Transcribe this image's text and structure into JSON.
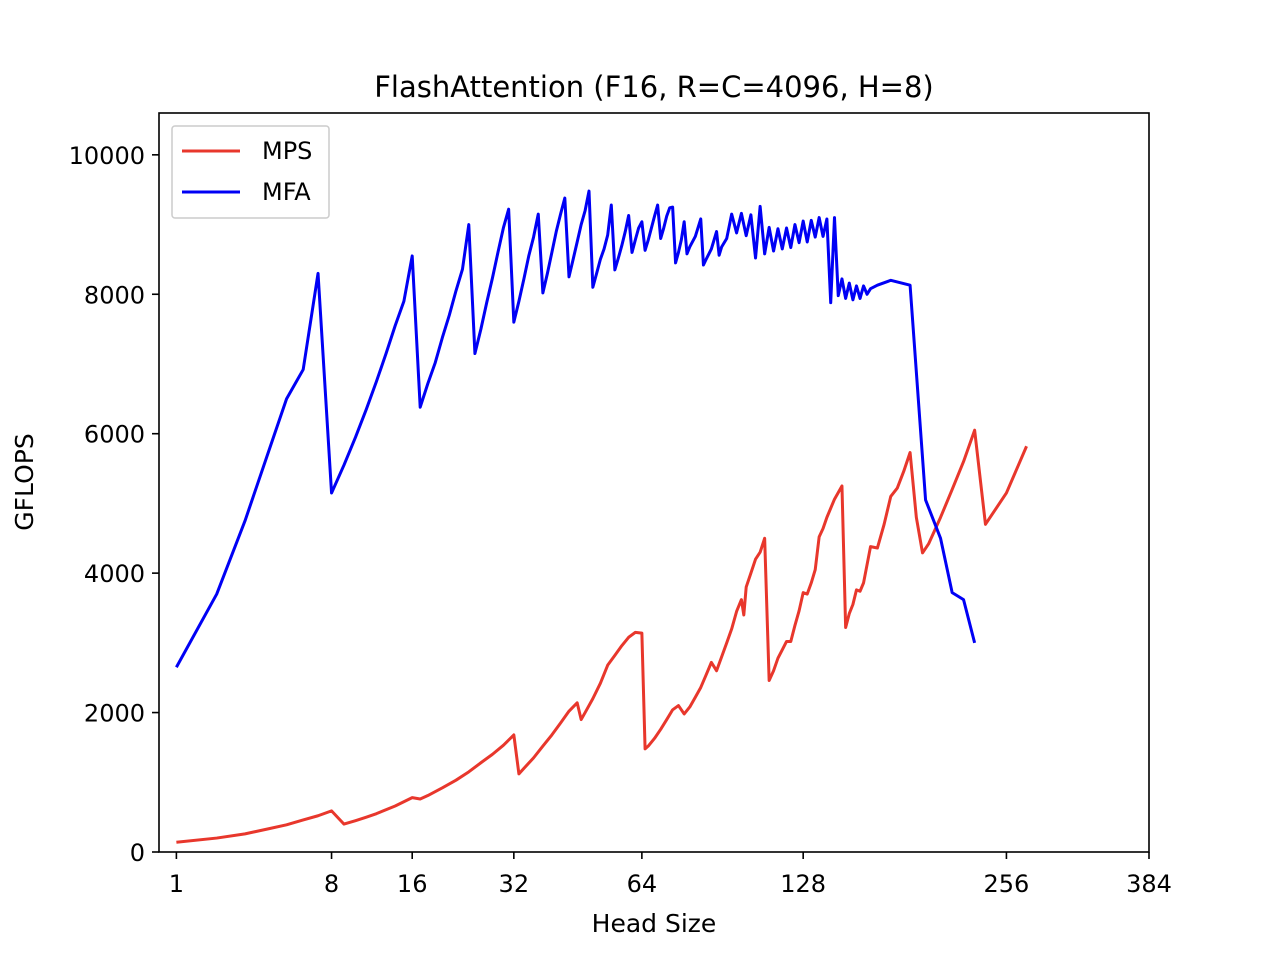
{
  "chart_data": {
    "type": "line",
    "title": "FlashAttention (F16, R=C=4096, H=8)",
    "xlabel": "Head Size",
    "ylabel": "GFLOPS",
    "xscale": "cube-root",
    "xlim": [
      0.7,
      384
    ],
    "ylim": [
      0,
      10600
    ],
    "xticks": [
      1,
      8,
      16,
      32,
      64,
      128,
      256,
      384
    ],
    "xtick_labels": [
      "1",
      "8",
      "16",
      "32",
      "64",
      "128",
      "256",
      "384"
    ],
    "yticks": [
      0,
      2000,
      4000,
      6000,
      8000,
      10000
    ],
    "ytick_labels": [
      "0",
      "2000",
      "4000",
      "6000",
      "8000",
      "10000"
    ],
    "grid": false,
    "legend": "top-left",
    "series": [
      {
        "name": "MPS",
        "color": "#e8372c",
        "points": [
          [
            1,
            140
          ],
          [
            2,
            200
          ],
          [
            3,
            260
          ],
          [
            4,
            330
          ],
          [
            5,
            390
          ],
          [
            6,
            460
          ],
          [
            7,
            520
          ],
          [
            8,
            590
          ],
          [
            9,
            400
          ],
          [
            10,
            450
          ],
          [
            11,
            500
          ],
          [
            12,
            550
          ],
          [
            14,
            660
          ],
          [
            16,
            780
          ],
          [
            17,
            760
          ],
          [
            18,
            810
          ],
          [
            20,
            920
          ],
          [
            22,
            1030
          ],
          [
            24,
            1150
          ],
          [
            26,
            1280
          ],
          [
            28,
            1400
          ],
          [
            30,
            1530
          ],
          [
            32,
            1680
          ],
          [
            33,
            1120
          ],
          [
            34,
            1200
          ],
          [
            36,
            1350
          ],
          [
            38,
            1520
          ],
          [
            40,
            1680
          ],
          [
            42,
            1850
          ],
          [
            44,
            2020
          ],
          [
            46,
            2140
          ],
          [
            47,
            1900
          ],
          [
            48,
            2000
          ],
          [
            50,
            2200
          ],
          [
            52,
            2420
          ],
          [
            54,
            2680
          ],
          [
            56,
            2820
          ],
          [
            58,
            2960
          ],
          [
            60,
            3080
          ],
          [
            62,
            3150
          ],
          [
            64,
            3140
          ],
          [
            65,
            1480
          ],
          [
            66,
            1520
          ],
          [
            68,
            1630
          ],
          [
            70,
            1760
          ],
          [
            72,
            1900
          ],
          [
            74,
            2040
          ],
          [
            76,
            2100
          ],
          [
            78,
            1980
          ],
          [
            80,
            2080
          ],
          [
            82,
            2220
          ],
          [
            84,
            2360
          ],
          [
            86,
            2540
          ],
          [
            88,
            2720
          ],
          [
            89,
            2660
          ],
          [
            90,
            2600
          ],
          [
            92,
            2800
          ],
          [
            94,
            3000
          ],
          [
            96,
            3200
          ],
          [
            98,
            3450
          ],
          [
            100,
            3620
          ],
          [
            101,
            3400
          ],
          [
            102,
            3800
          ],
          [
            104,
            4000
          ],
          [
            106,
            4200
          ],
          [
            108,
            4300
          ],
          [
            110,
            4500
          ],
          [
            112,
            2460
          ],
          [
            114,
            2600
          ],
          [
            116,
            2780
          ],
          [
            118,
            2900
          ],
          [
            120,
            3020
          ],
          [
            122,
            3020
          ],
          [
            124,
            3250
          ],
          [
            126,
            3460
          ],
          [
            128,
            3720
          ],
          [
            130,
            3700
          ],
          [
            132,
            3860
          ],
          [
            134,
            4050
          ],
          [
            136,
            4520
          ],
          [
            138,
            4640
          ],
          [
            140,
            4800
          ],
          [
            144,
            5060
          ],
          [
            148,
            5250
          ],
          [
            150,
            3220
          ],
          [
            152,
            3420
          ],
          [
            154,
            3550
          ],
          [
            156,
            3760
          ],
          [
            158,
            3740
          ],
          [
            160,
            3860
          ],
          [
            164,
            4380
          ],
          [
            168,
            4360
          ],
          [
            172,
            4700
          ],
          [
            176,
            5100
          ],
          [
            180,
            5220
          ],
          [
            184,
            5460
          ],
          [
            188,
            5730
          ],
          [
            192,
            4800
          ],
          [
            196,
            4290
          ],
          [
            200,
            4420
          ],
          [
            208,
            4800
          ],
          [
            216,
            5200
          ],
          [
            224,
            5600
          ],
          [
            232,
            6050
          ],
          [
            240,
            4700
          ],
          [
            256,
            5150
          ],
          [
            272,
            5820
          ]
        ]
      },
      {
        "name": "MFA",
        "color": "#0000f5",
        "points": [
          [
            1,
            2650
          ],
          [
            2,
            3700
          ],
          [
            3,
            4750
          ],
          [
            4,
            5700
          ],
          [
            5,
            6500
          ],
          [
            6,
            6920
          ],
          [
            7,
            8300
          ],
          [
            8,
            5150
          ],
          [
            9,
            5550
          ],
          [
            10,
            5950
          ],
          [
            11,
            6350
          ],
          [
            12,
            6750
          ],
          [
            13,
            7150
          ],
          [
            14,
            7550
          ],
          [
            15,
            7900
          ],
          [
            16,
            8550
          ],
          [
            17,
            6380
          ],
          [
            18,
            6720
          ],
          [
            19,
            7020
          ],
          [
            20,
            7380
          ],
          [
            21,
            7700
          ],
          [
            22,
            8050
          ],
          [
            23,
            8360
          ],
          [
            24,
            9000
          ],
          [
            25,
            7150
          ],
          [
            26,
            7500
          ],
          [
            27,
            7880
          ],
          [
            28,
            8230
          ],
          [
            29,
            8600
          ],
          [
            30,
            8950
          ],
          [
            31,
            9220
          ],
          [
            32,
            7600
          ],
          [
            33,
            7900
          ],
          [
            34,
            8220
          ],
          [
            35,
            8550
          ],
          [
            36,
            8820
          ],
          [
            37,
            9150
          ],
          [
            38,
            8020
          ],
          [
            39,
            8300
          ],
          [
            40,
            8600
          ],
          [
            41,
            8900
          ],
          [
            42,
            9150
          ],
          [
            43,
            9380
          ],
          [
            44,
            8250
          ],
          [
            45,
            8500
          ],
          [
            46,
            8750
          ],
          [
            47,
            9000
          ],
          [
            48,
            9200
          ],
          [
            49,
            9480
          ],
          [
            50,
            8100
          ],
          [
            51,
            8300
          ],
          [
            52,
            8500
          ],
          [
            53,
            8650
          ],
          [
            54,
            8850
          ],
          [
            55,
            9280
          ],
          [
            56,
            8350
          ],
          [
            57,
            8520
          ],
          [
            58,
            8700
          ],
          [
            59,
            8900
          ],
          [
            60,
            9130
          ],
          [
            61,
            8600
          ],
          [
            62,
            8780
          ],
          [
            63,
            8950
          ],
          [
            64,
            9040
          ],
          [
            65,
            8630
          ],
          [
            66,
            8780
          ],
          [
            67,
            8950
          ],
          [
            68,
            9120
          ],
          [
            69,
            9280
          ],
          [
            70,
            8800
          ],
          [
            71,
            8950
          ],
          [
            72,
            9120
          ],
          [
            73,
            9240
          ],
          [
            74,
            9250
          ],
          [
            75,
            8450
          ],
          [
            76,
            8600
          ],
          [
            77,
            8780
          ],
          [
            78,
            9040
          ],
          [
            79,
            8580
          ],
          [
            80,
            8680
          ],
          [
            82,
            8830
          ],
          [
            84,
            9080
          ],
          [
            85,
            8420
          ],
          [
            86,
            8500
          ],
          [
            88,
            8650
          ],
          [
            90,
            8900
          ],
          [
            91,
            8560
          ],
          [
            92,
            8680
          ],
          [
            94,
            8800
          ],
          [
            96,
            9150
          ],
          [
            98,
            8880
          ],
          [
            100,
            9160
          ],
          [
            102,
            8840
          ],
          [
            104,
            9140
          ],
          [
            106,
            8520
          ],
          [
            108,
            9260
          ],
          [
            110,
            8580
          ],
          [
            112,
            8960
          ],
          [
            114,
            8620
          ],
          [
            116,
            8940
          ],
          [
            118,
            8650
          ],
          [
            120,
            8950
          ],
          [
            122,
            8670
          ],
          [
            124,
            9000
          ],
          [
            126,
            8740
          ],
          [
            128,
            9050
          ],
          [
            130,
            8750
          ],
          [
            132,
            9060
          ],
          [
            134,
            8820
          ],
          [
            136,
            9100
          ],
          [
            138,
            8830
          ],
          [
            140,
            9080
          ],
          [
            142,
            7880
          ],
          [
            144,
            9100
          ],
          [
            146,
            7980
          ],
          [
            148,
            8220
          ],
          [
            150,
            7940
          ],
          [
            152,
            8160
          ],
          [
            154,
            7920
          ],
          [
            156,
            8120
          ],
          [
            158,
            7940
          ],
          [
            160,
            8120
          ],
          [
            162,
            8000
          ],
          [
            164,
            8080
          ],
          [
            168,
            8130
          ],
          [
            176,
            8200
          ],
          [
            188,
            8130
          ],
          [
            198,
            5050
          ],
          [
            208,
            4500
          ],
          [
            216,
            3720
          ],
          [
            224,
            3620
          ],
          [
            232,
            3000
          ]
        ]
      }
    ]
  }
}
